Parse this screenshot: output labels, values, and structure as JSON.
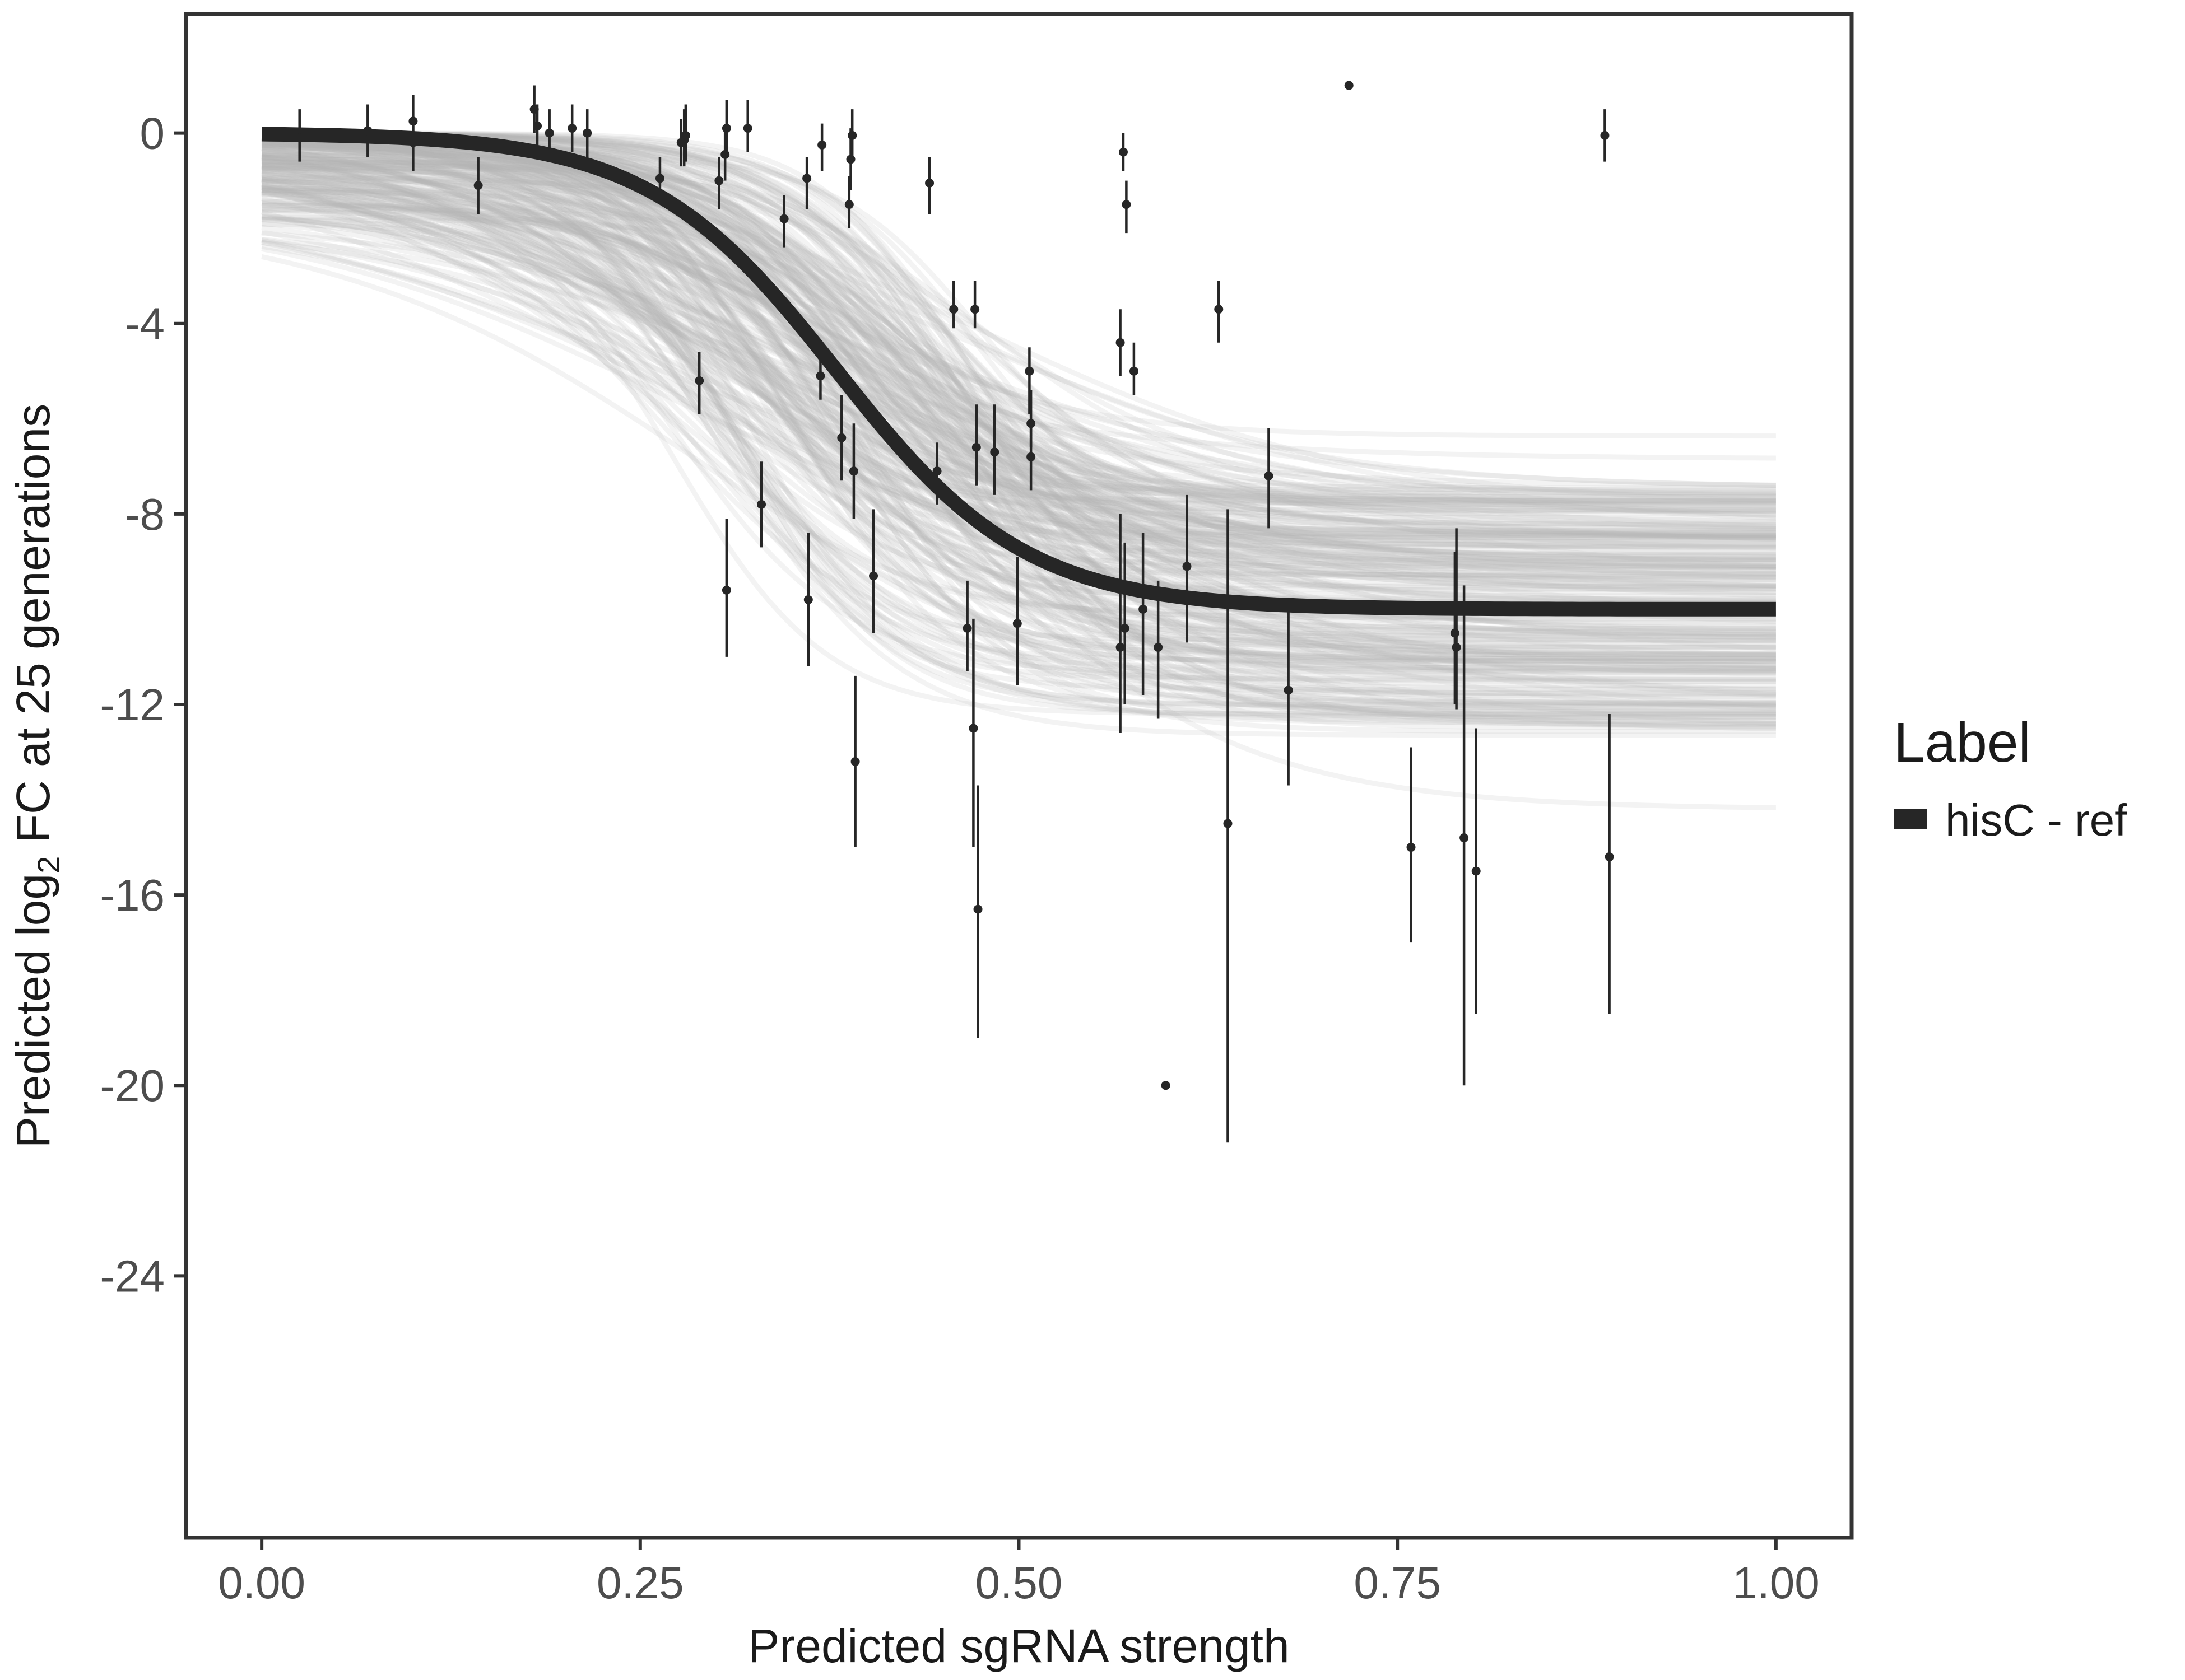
{
  "chart_data": {
    "type": "scatter",
    "xlabel": "Predicted sgRNA strength",
    "ylabel": {
      "prefix": "Predicted  log",
      "subscript": "2",
      "suffix": " FC at 25 generations"
    },
    "xlim": [
      -0.05,
      1.05
    ],
    "ylim": [
      -29.5,
      2.5
    ],
    "x_ticks": [
      {
        "value": 0.0,
        "label": "0.00"
      },
      {
        "value": 0.25,
        "label": "0.25"
      },
      {
        "value": 0.5,
        "label": "0.50"
      },
      {
        "value": 0.75,
        "label": "0.75"
      },
      {
        "value": 1.0,
        "label": "1.00"
      }
    ],
    "y_ticks": [
      {
        "value": 0,
        "label": "0"
      },
      {
        "value": -4,
        "label": "-4"
      },
      {
        "value": -8,
        "label": "-8"
      },
      {
        "value": -12,
        "label": "-12"
      },
      {
        "value": -16,
        "label": "-16"
      },
      {
        "value": -20,
        "label": "-20"
      },
      {
        "value": -24,
        "label": "-24"
      }
    ],
    "grid": false,
    "legend": {
      "title": "Label",
      "position": "right",
      "entries": [
        {
          "label": "hisC - ref",
          "color": "#262626"
        }
      ]
    },
    "fit_curve": {
      "name": "hisC - ref",
      "color": "#262626",
      "model": "logistic",
      "upper": 0.0,
      "lower": -10.0,
      "midpoint": 0.38,
      "slope": 16
    },
    "posterior_band": {
      "color": "#b3b3b3",
      "description": "posterior draws",
      "upper_range": [
        -2.0,
        0.0
      ],
      "lower_range": [
        -14.2,
        -6.0
      ],
      "midpoint_range": [
        0.26,
        0.48
      ],
      "slope_range": [
        6,
        22
      ]
    },
    "points": [
      {
        "x": 0.025,
        "y": -0.1,
        "lo": -0.6,
        "hi": 0.5
      },
      {
        "x": 0.07,
        "y": 0.05,
        "lo": -0.5,
        "hi": 0.6
      },
      {
        "x": 0.1,
        "y": 0.25,
        "lo": -0.3,
        "hi": 0.8
      },
      {
        "x": 0.1,
        "y": -0.2,
        "lo": -0.8,
        "hi": 0.3
      },
      {
        "x": 0.143,
        "y": -1.1,
        "lo": -1.7,
        "hi": -0.5
      },
      {
        "x": 0.18,
        "y": 0.5,
        "lo": 0.0,
        "hi": 1.0
      },
      {
        "x": 0.182,
        "y": 0.15,
        "lo": -0.3,
        "hi": 0.6
      },
      {
        "x": 0.19,
        "y": 0.0,
        "lo": -0.5,
        "hi": 0.5
      },
      {
        "x": 0.205,
        "y": 0.1,
        "lo": -0.4,
        "hi": 0.6
      },
      {
        "x": 0.215,
        "y": 0.0,
        "lo": -0.5,
        "hi": 0.5
      },
      {
        "x": 0.263,
        "y": -0.95,
        "lo": -1.3,
        "hi": -0.5
      },
      {
        "x": 0.277,
        "y": -0.2,
        "lo": -0.7,
        "hi": 0.3
      },
      {
        "x": 0.279,
        "y": -0.15,
        "lo": -0.7,
        "hi": 0.5
      },
      {
        "x": 0.28,
        "y": -0.05,
        "lo": -0.6,
        "hi": 0.6
      },
      {
        "x": 0.289,
        "y": -5.2,
        "lo": -5.9,
        "hi": -4.6
      },
      {
        "x": 0.302,
        "y": -1.0,
        "lo": -1.6,
        "hi": -0.5
      },
      {
        "x": 0.306,
        "y": -0.45,
        "lo": -1.0,
        "hi": 0.1
      },
      {
        "x": 0.307,
        "y": -9.6,
        "lo": -11.0,
        "hi": -8.1
      },
      {
        "x": 0.307,
        "y": 0.1,
        "lo": -0.5,
        "hi": 0.7
      },
      {
        "x": 0.321,
        "y": 0.1,
        "lo": -0.4,
        "hi": 0.7
      },
      {
        "x": 0.33,
        "y": -7.8,
        "lo": -8.7,
        "hi": -6.9
      },
      {
        "x": 0.345,
        "y": -1.8,
        "lo": -2.4,
        "hi": -1.3
      },
      {
        "x": 0.36,
        "y": -0.95,
        "lo": -1.6,
        "hi": -0.5
      },
      {
        "x": 0.361,
        "y": -9.8,
        "lo": -11.2,
        "hi": -8.4
      },
      {
        "x": 0.369,
        "y": -5.1,
        "lo": -5.6,
        "hi": -4.5
      },
      {
        "x": 0.37,
        "y": -0.25,
        "lo": -0.8,
        "hi": 0.2
      },
      {
        "x": 0.383,
        "y": -6.4,
        "lo": -7.3,
        "hi": -5.5
      },
      {
        "x": 0.388,
        "y": -1.5,
        "lo": -2.0,
        "hi": -0.9
      },
      {
        "x": 0.389,
        "y": -0.55,
        "lo": -1.2,
        "hi": 0.1
      },
      {
        "x": 0.39,
        "y": -0.05,
        "lo": -0.6,
        "hi": 0.5
      },
      {
        "x": 0.391,
        "y": -7.1,
        "lo": -8.1,
        "hi": -6.1
      },
      {
        "x": 0.392,
        "y": -13.2,
        "lo": -15.0,
        "hi": -11.4
      },
      {
        "x": 0.404,
        "y": -9.3,
        "lo": -10.5,
        "hi": -7.9
      },
      {
        "x": 0.441,
        "y": -1.05,
        "lo": -1.7,
        "hi": -0.5
      },
      {
        "x": 0.446,
        "y": -7.1,
        "lo": -7.8,
        "hi": -6.5
      },
      {
        "x": 0.457,
        "y": -3.7,
        "lo": -4.1,
        "hi": -3.1
      },
      {
        "x": 0.466,
        "y": -10.4,
        "lo": -11.3,
        "hi": -9.4
      },
      {
        "x": 0.47,
        "y": -12.5,
        "lo": -15.0,
        "hi": -10.2
      },
      {
        "x": 0.471,
        "y": -3.7,
        "lo": -4.1,
        "hi": -3.1
      },
      {
        "x": 0.472,
        "y": -6.6,
        "lo": -7.4,
        "hi": -5.7
      },
      {
        "x": 0.473,
        "y": -16.3,
        "lo": -19.0,
        "hi": -13.7
      },
      {
        "x": 0.484,
        "y": -6.7,
        "lo": -7.6,
        "hi": -5.7
      },
      {
        "x": 0.499,
        "y": -10.3,
        "lo": -11.6,
        "hi": -8.9
      },
      {
        "x": 0.507,
        "y": -5.0,
        "lo": -5.9,
        "hi": -4.5
      },
      {
        "x": 0.508,
        "y": -6.1,
        "lo": -6.6,
        "hi": -5.4
      },
      {
        "x": 0.508,
        "y": -6.8,
        "lo": -7.5,
        "hi": -6.1
      },
      {
        "x": 0.567,
        "y": -10.8,
        "lo": -12.6,
        "hi": -8.0
      },
      {
        "x": 0.567,
        "y": -4.4,
        "lo": -5.1,
        "hi": -3.7
      },
      {
        "x": 0.569,
        "y": -0.4,
        "lo": -0.8,
        "hi": 0.0
      },
      {
        "x": 0.57,
        "y": -10.4,
        "lo": -12.0,
        "hi": -8.6
      },
      {
        "x": 0.571,
        "y": -1.5,
        "lo": -2.1,
        "hi": -1.0
      },
      {
        "x": 0.576,
        "y": -5.0,
        "lo": -5.5,
        "hi": -4.4
      },
      {
        "x": 0.582,
        "y": -10.0,
        "lo": -11.8,
        "hi": -8.4
      },
      {
        "x": 0.592,
        "y": -10.8,
        "lo": -12.3,
        "hi": -9.4
      },
      {
        "x": 0.597,
        "y": -20.0,
        "lo": -20.0,
        "hi": -20.0
      },
      {
        "x": 0.611,
        "y": -9.1,
        "lo": -10.7,
        "hi": -7.6
      },
      {
        "x": 0.632,
        "y": -3.7,
        "lo": -4.4,
        "hi": -3.1
      },
      {
        "x": 0.638,
        "y": -14.5,
        "lo": -21.2,
        "hi": -7.9
      },
      {
        "x": 0.665,
        "y": -7.2,
        "lo": -8.3,
        "hi": -6.2
      },
      {
        "x": 0.678,
        "y": -11.7,
        "lo": -13.7,
        "hi": -9.8
      },
      {
        "x": 0.718,
        "y": 1.0,
        "lo": 1.0,
        "hi": 1.0
      },
      {
        "x": 0.759,
        "y": -15.0,
        "lo": -17.0,
        "hi": -12.9
      },
      {
        "x": 0.788,
        "y": -10.5,
        "lo": -12.0,
        "hi": -8.8
      },
      {
        "x": 0.789,
        "y": -10.8,
        "lo": -12.1,
        "hi": -8.3
      },
      {
        "x": 0.794,
        "y": -14.8,
        "lo": -20.0,
        "hi": -9.5
      },
      {
        "x": 0.802,
        "y": -15.5,
        "lo": -18.5,
        "hi": -12.5
      },
      {
        "x": 0.887,
        "y": -0.05,
        "lo": -0.6,
        "hi": 0.5
      },
      {
        "x": 0.89,
        "y": -15.2,
        "lo": -18.5,
        "hi": -12.2
      }
    ]
  }
}
